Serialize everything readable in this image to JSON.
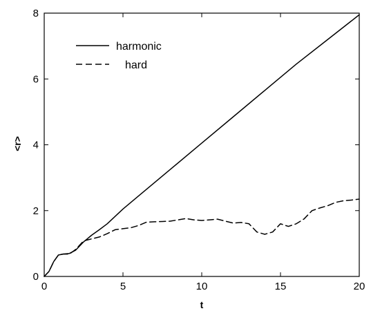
{
  "chart_data": {
    "type": "line",
    "title": "",
    "xlabel": "t",
    "ylabel": "<r>",
    "xlim": [
      0,
      20
    ],
    "ylim": [
      0,
      8
    ],
    "xticks": [
      0,
      5,
      10,
      15,
      20
    ],
    "yticks": [
      0,
      2,
      4,
      6,
      8
    ],
    "xtick_labels": [
      "0",
      "5",
      "10",
      "15",
      "20"
    ],
    "ytick_labels": [
      "0",
      "2",
      "4",
      "6",
      "8"
    ],
    "grid": false,
    "legend_position": "top-left",
    "series": [
      {
        "name": "harmonic",
        "style": "solid",
        "color": "#000000",
        "x": [
          0,
          0.3,
          0.6,
          0.9,
          1.2,
          1.6,
          2.0,
          2.5,
          3.0,
          3.5,
          4.0,
          5.0,
          6.0,
          8.0,
          10.0,
          12.0,
          14.0,
          16.0,
          18.0,
          20.0
        ],
        "y": [
          0,
          0.15,
          0.45,
          0.65,
          0.68,
          0.7,
          0.8,
          1.05,
          1.25,
          1.42,
          1.6,
          2.05,
          2.45,
          3.25,
          4.05,
          4.85,
          5.65,
          6.45,
          7.2,
          7.95
        ]
      },
      {
        "name": "hard",
        "style": "dashed",
        "color": "#000000",
        "x": [
          0,
          0.3,
          0.6,
          0.9,
          1.2,
          1.6,
          2.0,
          2.5,
          3.0,
          3.5,
          4.0,
          4.5,
          5.0,
          5.5,
          6.0,
          6.5,
          7.0,
          7.5,
          8.0,
          8.5,
          9.0,
          9.5,
          10.0,
          10.5,
          11.0,
          11.5,
          12.0,
          12.5,
          13.0,
          13.5,
          14.0,
          14.5,
          15.0,
          15.5,
          16.0,
          16.5,
          17.0,
          17.5,
          18.0,
          18.5,
          19.0,
          19.5,
          20.0
        ],
        "y": [
          0,
          0.15,
          0.45,
          0.65,
          0.68,
          0.68,
          0.82,
          1.08,
          1.14,
          1.2,
          1.3,
          1.42,
          1.45,
          1.48,
          1.55,
          1.65,
          1.66,
          1.67,
          1.68,
          1.72,
          1.76,
          1.72,
          1.7,
          1.72,
          1.74,
          1.68,
          1.62,
          1.64,
          1.6,
          1.35,
          1.28,
          1.35,
          1.6,
          1.52,
          1.6,
          1.75,
          2.0,
          2.08,
          2.15,
          2.25,
          2.3,
          2.32,
          2.35
        ]
      }
    ]
  }
}
